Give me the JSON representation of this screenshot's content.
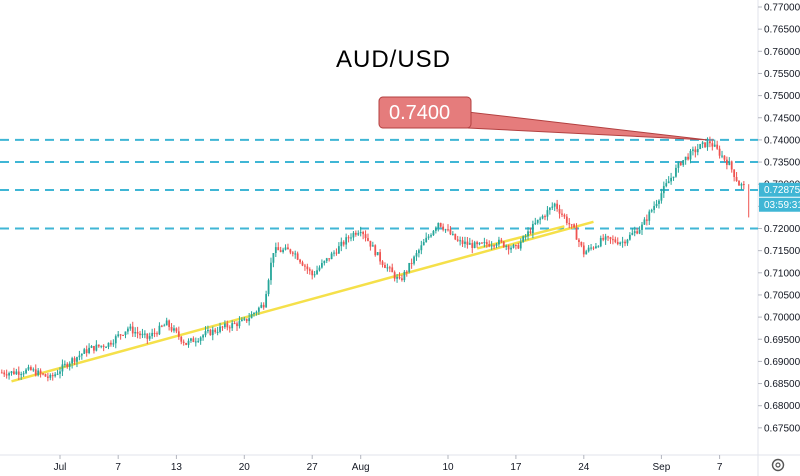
{
  "chart_data": {
    "type": "candlestick",
    "title": "AUD/USD",
    "y_ticks": [
      "0.67500",
      "0.68000",
      "0.68500",
      "0.69000",
      "0.69500",
      "0.70000",
      "0.70500",
      "0.71000",
      "0.71500",
      "0.72000",
      "0.72500",
      "0.73000",
      "0.73500",
      "0.74000",
      "0.74500",
      "0.75000",
      "0.75500",
      "0.76000",
      "0.76500",
      "0.77000"
    ],
    "x_ticks": [
      {
        "label": "Jul",
        "day": 0
      },
      {
        "label": "7",
        "day": 6
      },
      {
        "label": "13",
        "day": 12
      },
      {
        "label": "20",
        "day": 19
      },
      {
        "label": "27",
        "day": 26
      },
      {
        "label": "Aug",
        "day": 31
      },
      {
        "label": "10",
        "day": 40
      },
      {
        "label": "17",
        "day": 47
      },
      {
        "label": "24",
        "day": 54
      },
      {
        "label": "Sep",
        "day": 62
      },
      {
        "label": "7",
        "day": 68
      }
    ],
    "ylim": [
      0.67,
      0.773
    ],
    "horizontal_levels": [
      0.74,
      0.735,
      0.7287,
      0.72
    ],
    "annotation": {
      "label": "0.7400",
      "price": 0.74
    },
    "last_price": "0.72875",
    "countdown": "03:59:31",
    "trendlines": [
      {
        "from": {
          "day": -5,
          "price": 0.6855
        },
        "to": {
          "day": 55,
          "price": 0.7215
        }
      },
      {
        "from": {
          "day": 43,
          "price": 0.7155
        },
        "to": {
          "day": 52,
          "price": 0.7205
        }
      }
    ],
    "price_path": [
      [
        -5,
        0.6875
      ],
      [
        -3,
        0.688
      ],
      [
        -1,
        0.6862
      ],
      [
        1,
        0.69
      ],
      [
        3,
        0.6928
      ],
      [
        5,
        0.694
      ],
      [
        7,
        0.6975
      ],
      [
        9,
        0.6952
      ],
      [
        11,
        0.6985
      ],
      [
        13,
        0.694
      ],
      [
        15,
        0.6962
      ],
      [
        17,
        0.6978
      ],
      [
        19,
        0.699
      ],
      [
        21,
        0.703
      ],
      [
        22,
        0.715
      ],
      [
        24,
        0.715
      ],
      [
        26,
        0.7095
      ],
      [
        28,
        0.714
      ],
      [
        30,
        0.7185
      ],
      [
        31,
        0.72
      ],
      [
        33,
        0.713
      ],
      [
        35,
        0.708
      ],
      [
        37,
        0.715
      ],
      [
        39,
        0.7215
      ],
      [
        41,
        0.717
      ],
      [
        43,
        0.716
      ],
      [
        45,
        0.717
      ],
      [
        47,
        0.7155
      ],
      [
        49,
        0.721
      ],
      [
        51,
        0.7255
      ],
      [
        53,
        0.7195
      ],
      [
        54,
        0.7145
      ],
      [
        56,
        0.7175
      ],
      [
        58,
        0.717
      ],
      [
        60,
        0.7205
      ],
      [
        62,
        0.728
      ],
      [
        64,
        0.735
      ],
      [
        66,
        0.7385
      ],
      [
        67,
        0.7395
      ],
      [
        69,
        0.7345
      ],
      [
        70,
        0.73
      ],
      [
        72,
        0.728
      ],
      [
        73,
        0.7287
      ]
    ]
  },
  "ui": {
    "gear_icon": "gear-icon"
  }
}
